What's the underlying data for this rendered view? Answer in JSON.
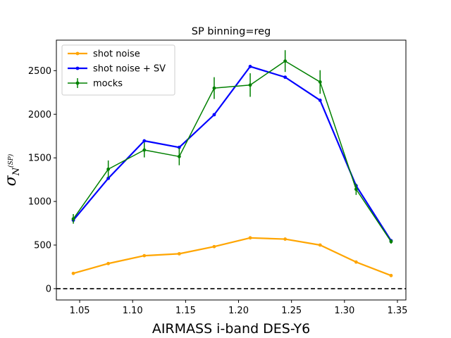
{
  "chart_data": {
    "type": "line",
    "title": "SP binning=reg",
    "xlabel": "AIRMASS i-band DES-Y6",
    "ylabel": "σ_N^(SP)",
    "xlim": [
      1.028,
      1.358
    ],
    "ylim": [
      -130,
      2850
    ],
    "xticks": [
      1.05,
      1.1,
      1.15,
      1.2,
      1.25,
      1.3,
      1.35
    ],
    "xtick_labels": [
      "1.05",
      "1.10",
      "1.15",
      "1.20",
      "1.25",
      "1.30",
      "1.35"
    ],
    "yticks": [
      0,
      500,
      1000,
      1500,
      2000,
      2500
    ],
    "ytick_labels": [
      "0",
      "500",
      "1000",
      "1500",
      "2000",
      "2500"
    ],
    "reference_line": {
      "y": 0,
      "style": "dashed",
      "color": "#000000"
    },
    "legend": {
      "position": "top-left"
    },
    "x": [
      1.044,
      1.077,
      1.111,
      1.144,
      1.177,
      1.211,
      1.244,
      1.277,
      1.311,
      1.344
    ],
    "series": [
      {
        "name": "shot noise",
        "color": "#ffa500",
        "values": [
          175,
          288,
          378,
          400,
          482,
          582,
          568,
          500,
          305,
          150
        ]
      },
      {
        "name": "shot noise + SV",
        "color": "#0000ff",
        "values": [
          785,
          1265,
          1695,
          1620,
          1995,
          2548,
          2425,
          2160,
          1180,
          550
        ]
      },
      {
        "name": "mocks",
        "color": "#008000",
        "values": [
          800,
          1370,
          1590,
          1515,
          2300,
          2335,
          2610,
          2370,
          1140,
          540
        ],
        "errors": [
          55,
          100,
          85,
          100,
          125,
          135,
          125,
          135,
          65,
          25
        ]
      }
    ]
  }
}
